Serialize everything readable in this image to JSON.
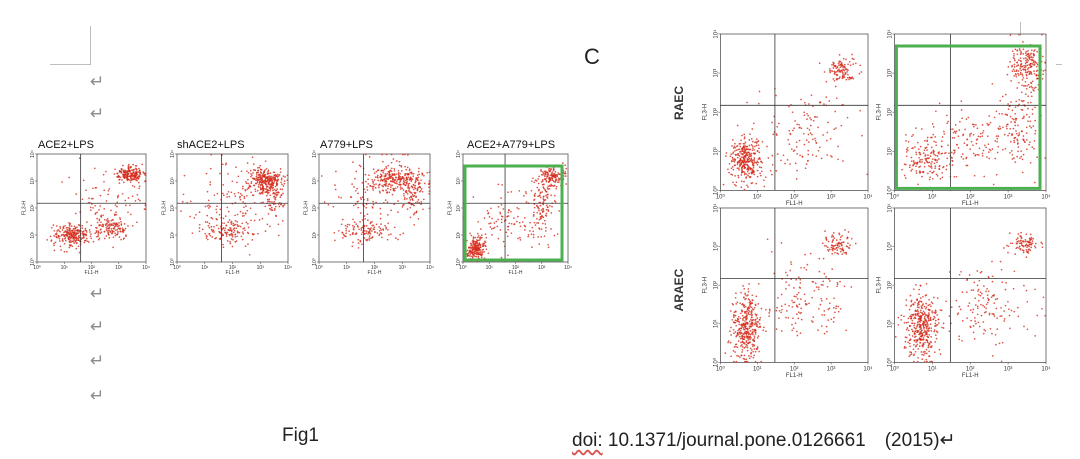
{
  "doc": {
    "paragraph_mark": "↵",
    "caption_left": "Fig1",
    "caption_right_prefix": "doi:",
    "caption_right_text": " 10.1371/journal.pone.0126661　(2015)↵",
    "panel_label": "C",
    "row_labels": [
      "RAEC",
      "ARAEC"
    ]
  },
  "colors": {
    "dots": "#d42a1a",
    "highlight": "#4caf50",
    "gate": "#333333"
  },
  "chart_data": [
    {
      "id": "ace2-lps",
      "type": "scatter",
      "title": "ACE2+LPS",
      "xlabel": "FL1-H",
      "ylabel": "FL3-H",
      "xscale": "log",
      "yscale": "log",
      "xlim": [
        1,
        10000
      ],
      "ylim": [
        1,
        10000
      ],
      "xticks": [
        "10⁰",
        "10¹",
        "10²",
        "10³",
        "10⁴"
      ],
      "yticks": [
        "10⁰",
        "10¹",
        "10²",
        "10³",
        "10⁴"
      ],
      "quadrant_gate": {
        "x": 40,
        "y": 150
      },
      "highlighted": false,
      "series": [
        {
          "clusters": [
            {
              "x": 20,
              "y": 10,
              "sx": 0.35,
              "sy": 0.2,
              "n": 230
            },
            {
              "x": 500,
              "y": 18,
              "sx": 0.3,
              "sy": 0.2,
              "n": 120
            },
            {
              "x": 2500,
              "y": 1800,
              "sx": 0.25,
              "sy": 0.14,
              "n": 200
            },
            {
              "x": 300,
              "y": 150,
              "sx": 0.8,
              "sy": 0.8,
              "n": 100
            }
          ]
        }
      ]
    },
    {
      "id": "shace2-lps",
      "type": "scatter",
      "title": "shACE2+LPS",
      "xlabel": "FL1-H",
      "ylabel": "FL3-H",
      "xscale": "log",
      "yscale": "log",
      "xlim": [
        1,
        10000
      ],
      "ylim": [
        1,
        10000
      ],
      "xticks": [
        "10⁰",
        "10¹",
        "10²",
        "10³",
        "10⁴"
      ],
      "yticks": [
        "10⁰",
        "10¹",
        "10²",
        "10³",
        "10⁴"
      ],
      "quadrant_gate": {
        "x": 40,
        "y": 150
      },
      "highlighted": false,
      "series": [
        {
          "clusters": [
            {
              "x": 1500,
              "y": 1000,
              "sx": 0.3,
              "sy": 0.25,
              "n": 250
            },
            {
              "x": 3000,
              "y": 300,
              "sx": 0.2,
              "sy": 0.4,
              "n": 80
            },
            {
              "x": 80,
              "y": 12,
              "sx": 0.5,
              "sy": 0.2,
              "n": 120
            },
            {
              "x": 100,
              "y": 200,
              "sx": 0.8,
              "sy": 0.7,
              "n": 140
            }
          ]
        }
      ]
    },
    {
      "id": "a779-lps",
      "type": "scatter",
      "title": "A779+LPS",
      "xlabel": "FL1-H",
      "ylabel": "FL3-H",
      "xscale": "log",
      "yscale": "log",
      "xlim": [
        1,
        10000
      ],
      "ylim": [
        1,
        10000
      ],
      "xticks": [
        "10⁰",
        "10¹",
        "10²",
        "10³",
        "10⁴"
      ],
      "yticks": [
        "10⁰",
        "10¹",
        "10²",
        "10³",
        "10⁴"
      ],
      "quadrant_gate": {
        "x": 40,
        "y": 150
      },
      "highlighted": false,
      "series": [
        {
          "clusters": [
            {
              "x": 600,
              "y": 1200,
              "sx": 0.55,
              "sy": 0.22,
              "n": 260
            },
            {
              "x": 2000,
              "y": 300,
              "sx": 0.2,
              "sy": 0.35,
              "n": 80
            },
            {
              "x": 50,
              "y": 12,
              "sx": 0.5,
              "sy": 0.2,
              "n": 100
            },
            {
              "x": 100,
              "y": 250,
              "sx": 0.8,
              "sy": 0.7,
              "n": 120
            }
          ]
        }
      ]
    },
    {
      "id": "ace2-a779-lps",
      "type": "scatter",
      "title": "ACE2+A779+LPS",
      "xlabel": "FL1-H",
      "ylabel": "FL3-H",
      "xscale": "log",
      "yscale": "log",
      "xlim": [
        1,
        10000
      ],
      "ylim": [
        1,
        10000
      ],
      "xticks": [
        "10⁰",
        "10¹",
        "10²",
        "10³",
        "10⁴"
      ],
      "yticks": [
        "10⁰",
        "10¹",
        "10²",
        "10³",
        "10⁴"
      ],
      "quadrant_gate": {
        "x": 40,
        "y": 150
      },
      "highlighted": true,
      "series": [
        {
          "clusters": [
            {
              "x": 3,
              "y": 3,
              "sx": 0.2,
              "sy": 0.2,
              "n": 200
            },
            {
              "x": 2500,
              "y": 1500,
              "sx": 0.25,
              "sy": 0.2,
              "n": 140
            },
            {
              "x": 1200,
              "y": 150,
              "sx": 0.25,
              "sy": 0.5,
              "n": 100
            },
            {
              "x": 80,
              "y": 30,
              "sx": 0.8,
              "sy": 0.6,
              "n": 120
            }
          ]
        }
      ]
    },
    {
      "id": "raec-1",
      "type": "scatter",
      "title": "",
      "xlabel": "FL1-H",
      "ylabel": "FL3-H",
      "xscale": "log",
      "yscale": "log",
      "xlim": [
        1,
        10000
      ],
      "ylim": [
        1,
        10000
      ],
      "xticks": [
        "10⁰",
        "10¹",
        "10²",
        "10³",
        "10⁴"
      ],
      "yticks": [
        "10⁰",
        "10¹",
        "10²",
        "10³",
        "10⁴"
      ],
      "quadrant_gate": {
        "x": 30,
        "y": 150
      },
      "highlighted": false,
      "series": [
        {
          "clusters": [
            {
              "x": 5,
              "y": 6,
              "sx": 0.22,
              "sy": 0.28,
              "n": 320
            },
            {
              "x": 2000,
              "y": 1200,
              "sx": 0.2,
              "sy": 0.15,
              "n": 110
            },
            {
              "x": 200,
              "y": 30,
              "sx": 0.65,
              "sy": 0.55,
              "n": 130
            }
          ]
        }
      ]
    },
    {
      "id": "raec-2",
      "type": "scatter",
      "title": "",
      "xlabel": "FL1-H",
      "ylabel": "FL3-H",
      "xscale": "log",
      "yscale": "log",
      "xlim": [
        1,
        10000
      ],
      "ylim": [
        1,
        10000
      ],
      "xticks": [
        "10⁰",
        "10¹",
        "10²",
        "10³",
        "10⁴"
      ],
      "yticks": [
        "10⁰",
        "10¹",
        "10²",
        "10³",
        "10⁴"
      ],
      "quadrant_gate": {
        "x": 30,
        "y": 150
      },
      "highlighted": true,
      "series": [
        {
          "clusters": [
            {
              "x": 3000,
              "y": 1500,
              "sx": 0.2,
              "sy": 0.3,
              "n": 200
            },
            {
              "x": 2000,
              "y": 40,
              "sx": 0.3,
              "sy": 0.5,
              "n": 130
            },
            {
              "x": 6,
              "y": 6,
              "sx": 0.3,
              "sy": 0.3,
              "n": 140
            },
            {
              "x": 80,
              "y": 15,
              "sx": 0.6,
              "sy": 0.4,
              "n": 150
            }
          ]
        }
      ]
    },
    {
      "id": "araec-1",
      "type": "scatter",
      "title": "",
      "xlabel": "FL1-H",
      "ylabel": "FL3-H",
      "xscale": "log",
      "yscale": "log",
      "xlim": [
        1,
        10000
      ],
      "ylim": [
        1,
        10000
      ],
      "xticks": [
        "10⁰",
        "10¹",
        "10²",
        "10³",
        "10⁴"
      ],
      "yticks": [
        "10⁰",
        "10¹",
        "10²",
        "10³",
        "10⁴"
      ],
      "quadrant_gate": {
        "x": 30,
        "y": 150
      },
      "highlighted": false,
      "series": [
        {
          "clusters": [
            {
              "x": 5,
              "y": 8,
              "sx": 0.2,
              "sy": 0.45,
              "n": 360
            },
            {
              "x": 1500,
              "y": 1000,
              "sx": 0.18,
              "sy": 0.15,
              "n": 90
            },
            {
              "x": 200,
              "y": 40,
              "sx": 0.6,
              "sy": 0.55,
              "n": 140
            }
          ]
        }
      ]
    },
    {
      "id": "araec-2",
      "type": "scatter",
      "title": "",
      "xlabel": "FL1-H",
      "ylabel": "FL3-H",
      "xscale": "log",
      "yscale": "log",
      "xlim": [
        1,
        10000
      ],
      "ylim": [
        1,
        10000
      ],
      "xticks": [
        "10⁰",
        "10¹",
        "10²",
        "10³",
        "10⁴"
      ],
      "yticks": [
        "10⁰",
        "10¹",
        "10²",
        "10³",
        "10⁴"
      ],
      "quadrant_gate": {
        "x": 30,
        "y": 150
      },
      "highlighted": false,
      "series": [
        {
          "clusters": [
            {
              "x": 5,
              "y": 8,
              "sx": 0.22,
              "sy": 0.45,
              "n": 380
            },
            {
              "x": 2500,
              "y": 1200,
              "sx": 0.18,
              "sy": 0.13,
              "n": 90
            },
            {
              "x": 300,
              "y": 30,
              "sx": 0.6,
              "sy": 0.5,
              "n": 150
            }
          ]
        }
      ]
    }
  ]
}
